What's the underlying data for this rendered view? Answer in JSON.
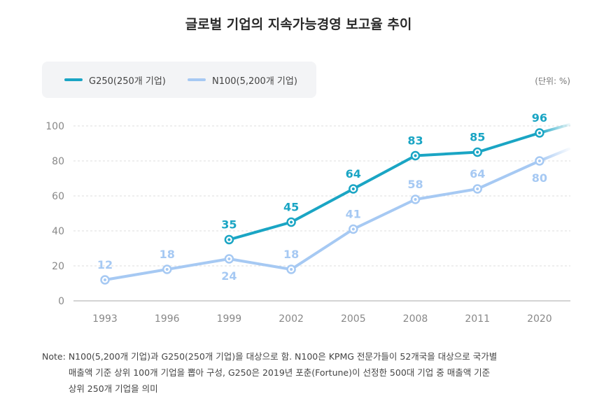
{
  "title": "글로벌 기업의 지속가능경영 보고율 추이",
  "unit_label": "(단위: %)",
  "note": {
    "head": "Note:",
    "lines": [
      "N100(5,200개 기업)과 G250(250개 기업)을 대상으로 함. N100은 KPMG 전문가들이 52개국을 대상으로 국가별",
      "매출액 기준 상위 100개 기업을 뽑아 구성, G250은 2019년 포춘(Fortune)이 선정한 500대 기업 중 매출액 기준",
      "상위 250개 기업을 의미"
    ]
  },
  "colors": {
    "g250": "#1aa5c4",
    "n100": "#a6c9f3",
    "axis": "#888888",
    "grid": "#dddddd"
  },
  "chart_data": {
    "type": "line",
    "title": "글로벌 기업의 지속가능경영 보고율 추이",
    "xlabel": "",
    "ylabel": "",
    "categories": [
      "1993",
      "1996",
      "1999",
      "2002",
      "2005",
      "2008",
      "2011",
      "2020"
    ],
    "ylim": [
      0,
      100
    ],
    "yticks": [
      "0",
      "20",
      "40",
      "60",
      "80",
      "100"
    ],
    "grid": true,
    "legend_position": "top-left",
    "series": [
      {
        "name": "G250(250개 기업)",
        "values": [
          null,
          null,
          35,
          45,
          64,
          83,
          85,
          96
        ]
      },
      {
        "name": "N100(5,200개 기업)",
        "values": [
          12,
          18,
          24,
          18,
          41,
          58,
          64,
          80
        ]
      }
    ]
  }
}
